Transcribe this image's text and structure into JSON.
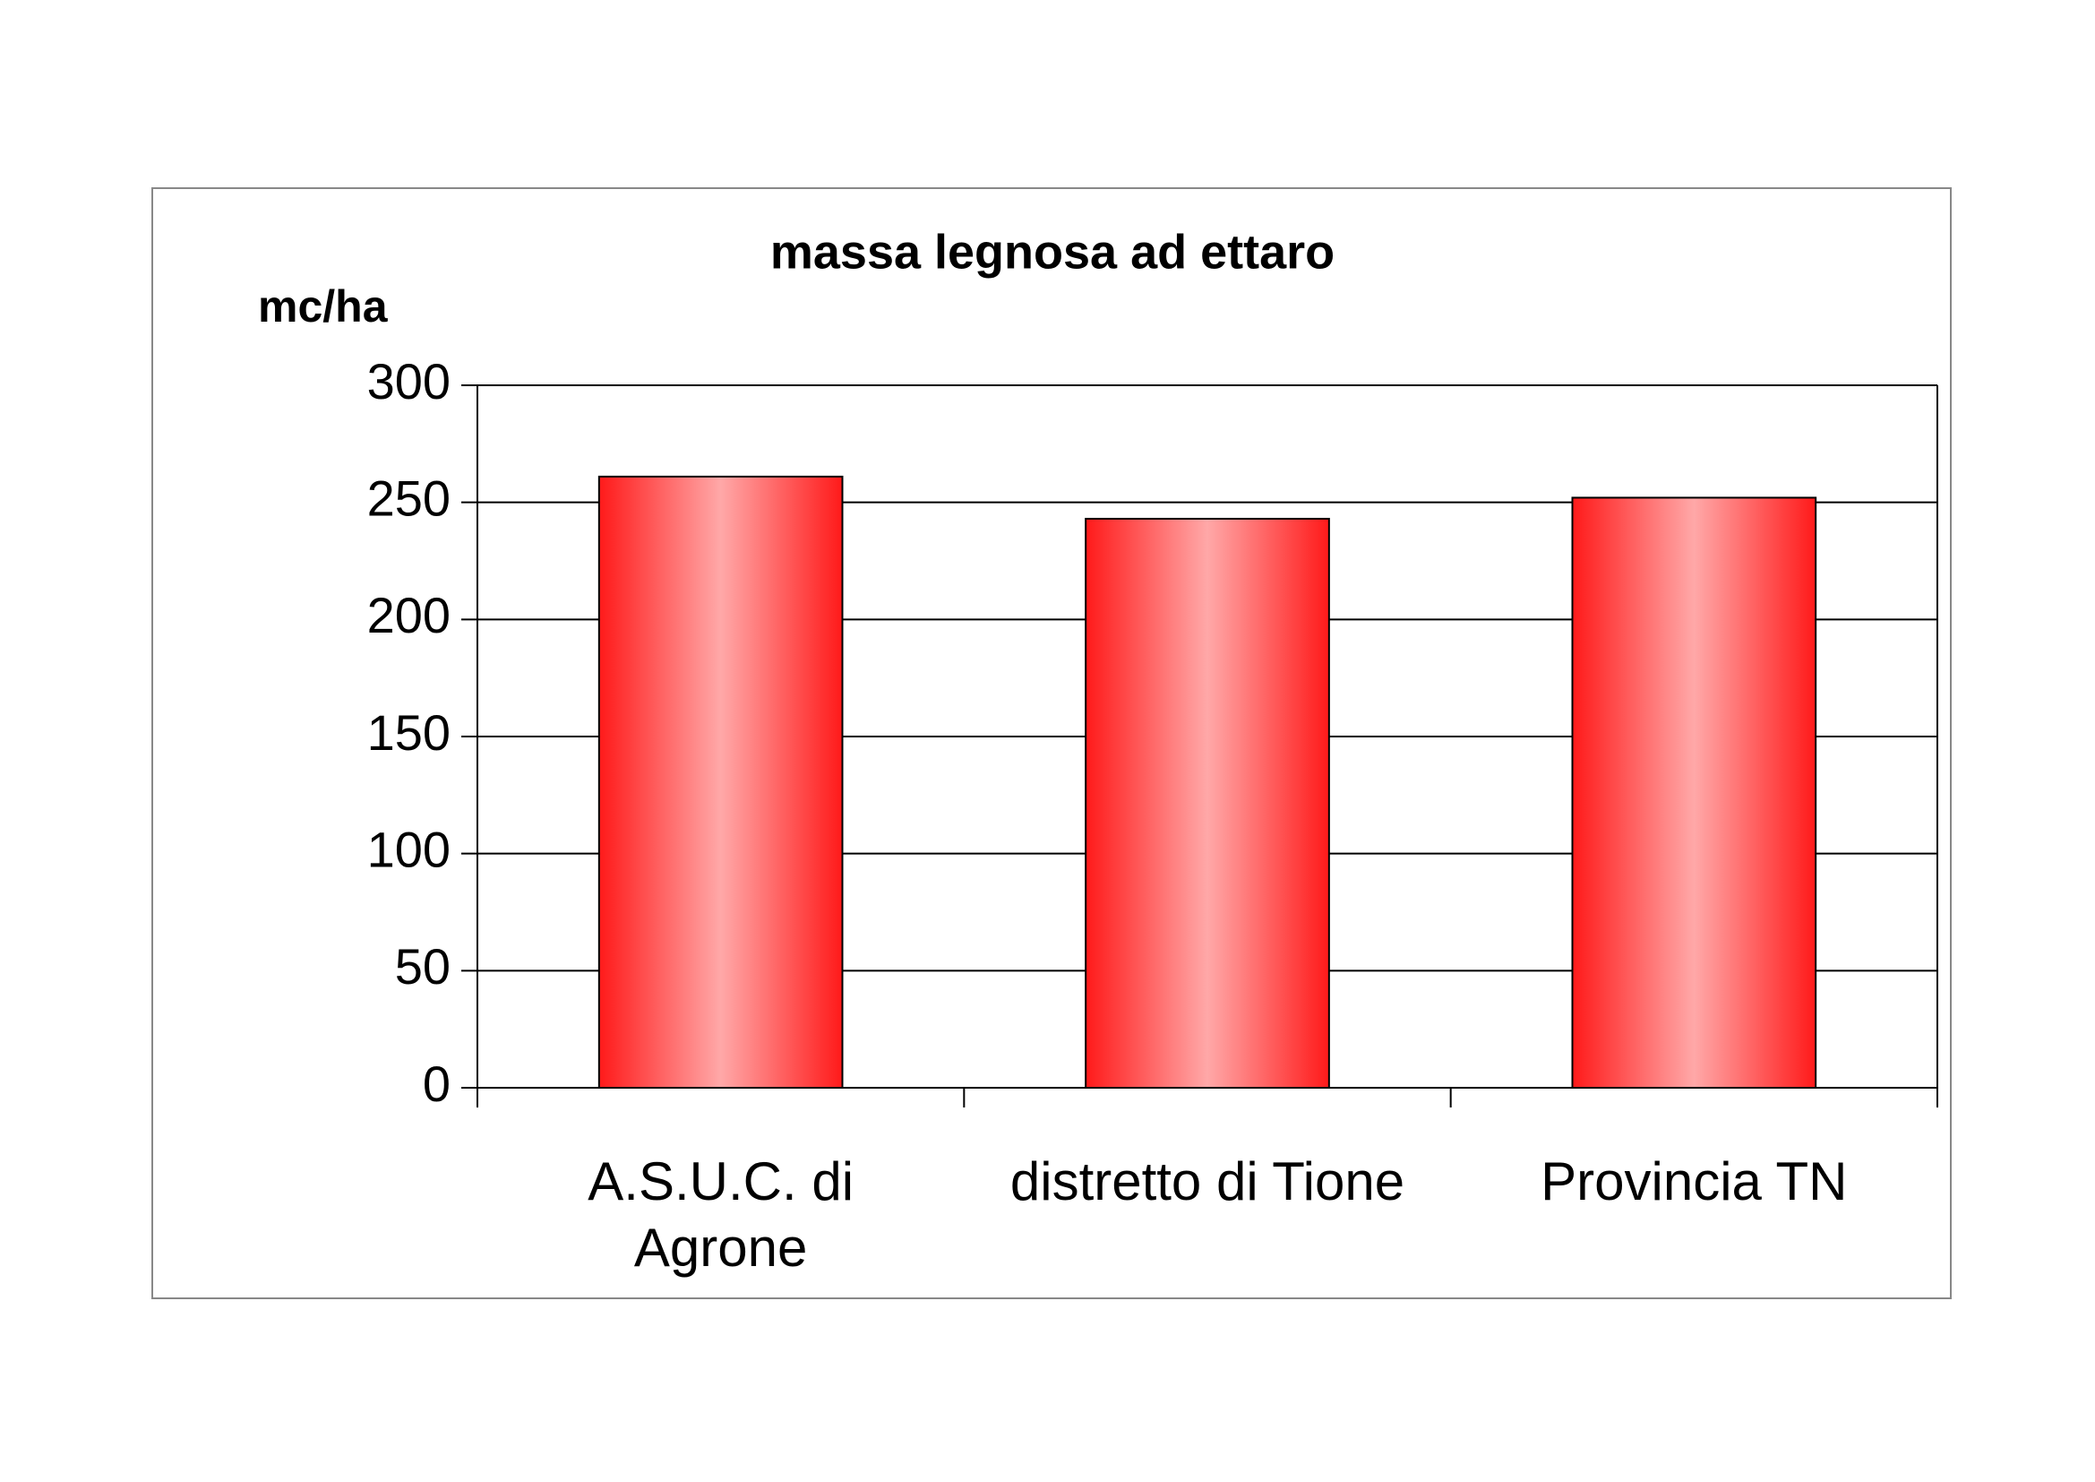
{
  "chart_data": {
    "type": "bar",
    "title": "massa legnosa ad ettaro",
    "y_label": "mc/ha",
    "categories": [
      "A.S.U.C. di Agrone",
      "distretto di Tione",
      "Provincia TN"
    ],
    "values": [
      261,
      243,
      252
    ],
    "color": "#ff2020",
    "ylim": [
      0,
      300
    ],
    "yticks": [
      0,
      50,
      100,
      150,
      200,
      250,
      300
    ],
    "grid": true
  }
}
